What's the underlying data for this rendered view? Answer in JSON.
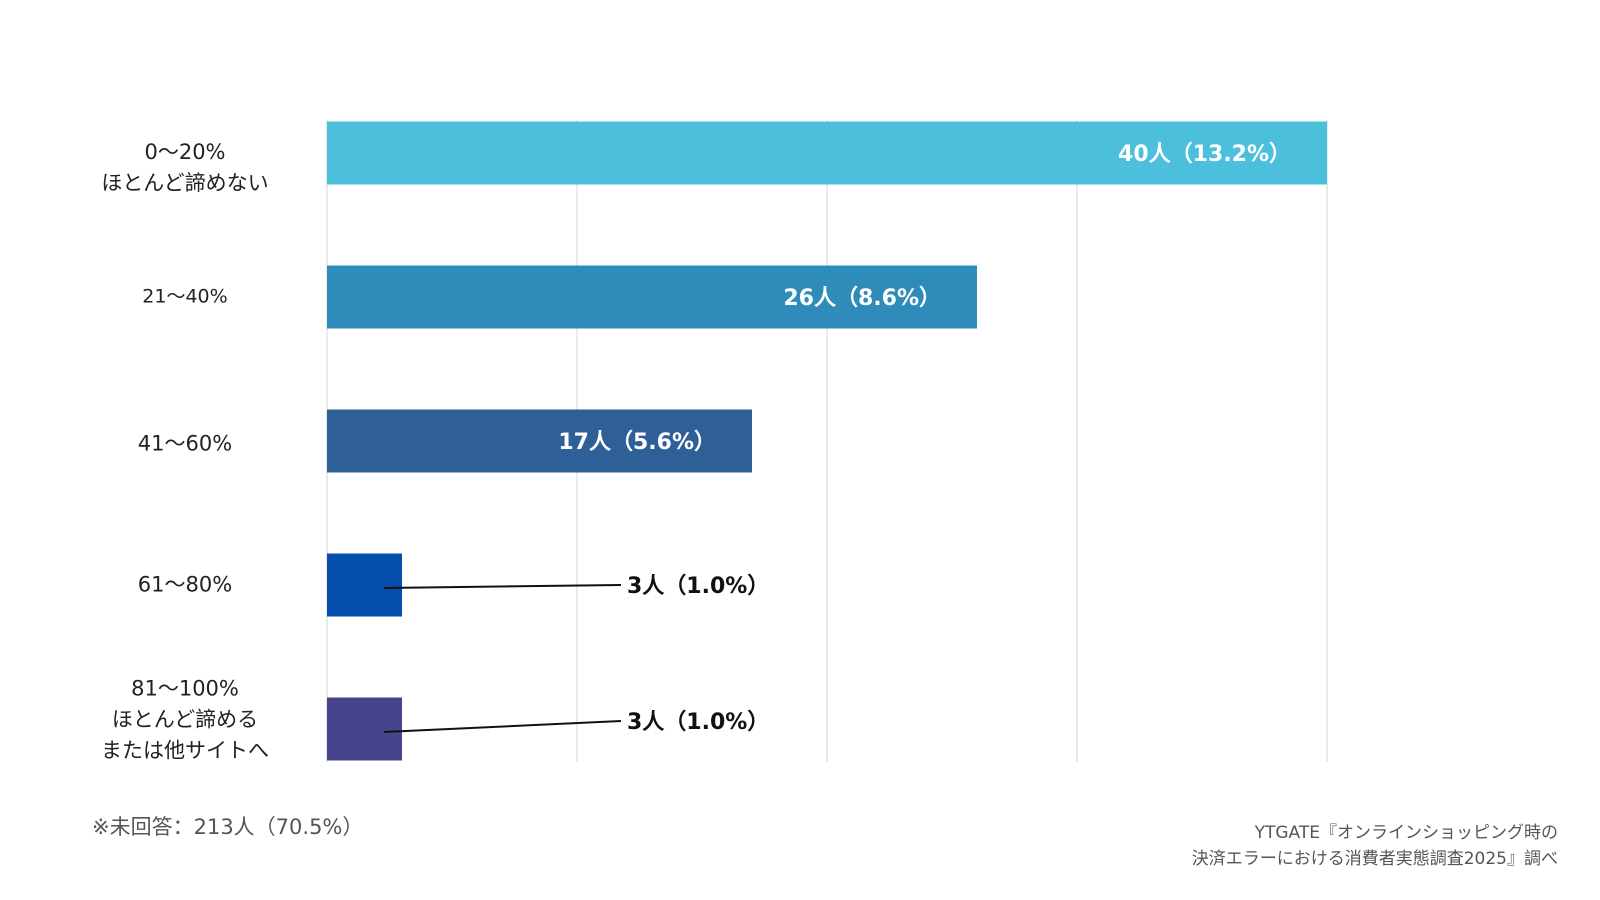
{
  "chart_data": {
    "type": "bar",
    "orientation": "horizontal",
    "categories": [
      [
        "0〜20%",
        "ほとんど諦めない"
      ],
      [
        "21〜40%"
      ],
      [
        "41〜60%"
      ],
      [
        "61〜80%"
      ],
      [
        "81〜100%",
        "ほとんど諦める",
        "または他サイトへ"
      ]
    ],
    "values": [
      40,
      26,
      17,
      3,
      3
    ],
    "percentages": [
      13.2,
      8.6,
      5.6,
      1.0,
      1.0
    ],
    "data_labels": [
      "40人（13.2%）",
      "26人（8.6%）",
      "17人（5.6%）",
      "3人（1.0%）",
      "3人（1.0%）"
    ],
    "colors": [
      "#4bbfdc",
      "#2e8bba",
      "#2e5f96",
      "#064ead",
      "#45448d"
    ],
    "xlim": [
      0,
      40
    ],
    "grid": true,
    "gridline_count": 4,
    "legend": "none"
  },
  "note": "※未回答：213人（70.5%）",
  "source": [
    "YTGATE『オンラインショッピング時の",
    "決済エラーにおける消費者実態調査2025』調べ"
  ]
}
